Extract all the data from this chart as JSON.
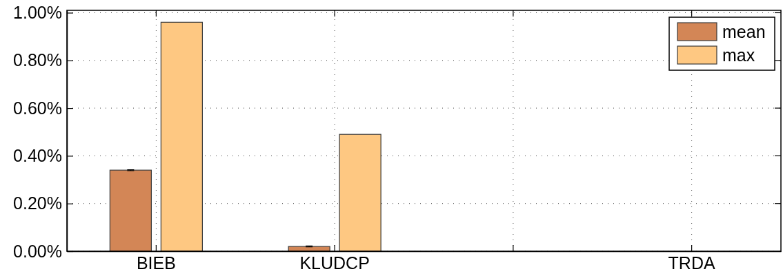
{
  "chart_data": {
    "type": "bar",
    "categories": [
      "BIEB",
      "KLUDCP",
      null,
      "TRDA"
    ],
    "series": [
      {
        "name": "mean",
        "color": "#d38656",
        "values": [
          0.34,
          0.02,
          0,
          0
        ],
        "errors": [
          0.002,
          0.002,
          null,
          null
        ]
      },
      {
        "name": "max",
        "color": "#fec882",
        "values": [
          0.96,
          0.49,
          0,
          0
        ]
      }
    ],
    "ylim": [
      0,
      1.01
    ],
    "yticks": [
      {
        "value": 0,
        "label": "0.00%"
      },
      {
        "value": 0.2,
        "label": "0.20%"
      },
      {
        "value": 0.4,
        "label": "0.40%"
      },
      {
        "value": 0.6,
        "label": "0.60%"
      },
      {
        "value": 0.8,
        "label": "0.80%"
      },
      {
        "value": 1,
        "label": "1.00%"
      }
    ],
    "grid": true,
    "legend": "top right"
  }
}
